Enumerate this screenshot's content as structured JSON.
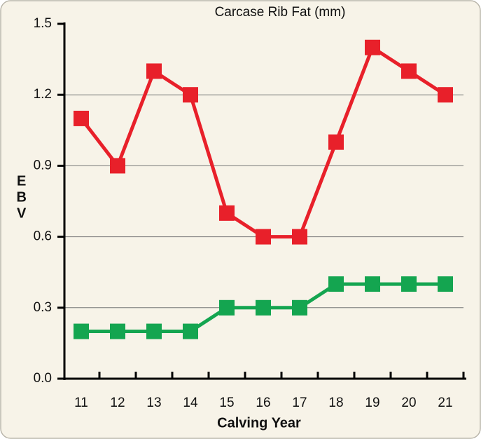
{
  "chart_data": {
    "type": "line",
    "title": "Carcase Rib Fat (mm)",
    "y_label": "EBV",
    "x_label": "Calving Year",
    "categories": [
      "11",
      "12",
      "13",
      "14",
      "15",
      "16",
      "17",
      "18",
      "19",
      "20",
      "21"
    ],
    "series": [
      {
        "color": "#e8202a",
        "values": [
          1.1,
          0.9,
          1.3,
          1.2,
          0.7,
          0.6,
          0.6,
          1.0,
          1.4,
          1.3,
          1.2
        ]
      },
      {
        "color": "#14a550",
        "values": [
          0.2,
          0.2,
          0.2,
          0.2,
          0.3,
          0.3,
          0.3,
          0.4,
          0.4,
          0.4,
          0.4
        ]
      }
    ],
    "ylim": [
      0,
      1.5
    ],
    "yticks": [
      {
        "value": 0,
        "label": "0.0"
      },
      0.3,
      0.6,
      0.9,
      1.2,
      1.5
    ],
    "grid": true
  }
}
